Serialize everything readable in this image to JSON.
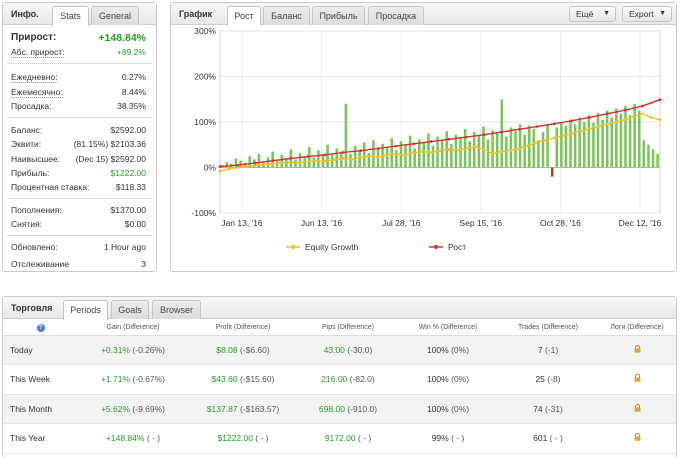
{
  "info": {
    "title": "Инфо.",
    "tabs": [
      "Stats",
      "General"
    ],
    "gain_label": "Прирост:",
    "gain_value": "+148.84%",
    "abs_gain_label": "Абс. прирост:",
    "abs_gain_value": "+89.2%",
    "daily_label": "Ежедневно:",
    "daily_value": "0.27%",
    "monthly_label": "Ежемесячно:",
    "monthly_value": "8.44%",
    "drawdown_label": "Просадка:",
    "drawdown_value": "38.35%",
    "balance_label": "Баланс:",
    "balance_value": "$2592.00",
    "equity_label": "Эквити:",
    "equity_value": "(81.15%) $2103.36",
    "highest_label": "Наивысшее:",
    "highest_value": "(Dec 15) $2592.00",
    "profit_label": "Прибыль:",
    "profit_value": "$1222.00",
    "interest_label": "Процентная ставка:",
    "interest_value": "$118.33",
    "deposits_label": "Пополнения:",
    "deposits_value": "$1370.00",
    "withdrawals_label": "Снятия:",
    "withdrawals_value": "$0.00",
    "updated_label": "Обновлено:",
    "updated_value": "1 Hour ago",
    "tracking_label": "Отслеживание",
    "tracking_value": "3"
  },
  "graph": {
    "title": "График",
    "tabs": [
      "Рост",
      "Баланс",
      "Прибыль",
      "Просадка"
    ],
    "more_button": "Ещё",
    "export_button": "Export",
    "legend": [
      "Equity Growth",
      "Рост"
    ]
  },
  "chart_data": {
    "type": "line",
    "y_ticks": [
      "300%",
      "200%",
      "100%",
      "0%",
      "-100%"
    ],
    "x_ticks": [
      "Jan 13, '16",
      "Jun 13, '16",
      "Jul 28, '16",
      "Sep 15, '16",
      "Oct 28, '16",
      "Dec 12, '16"
    ],
    "ylim": [
      -100,
      300
    ],
    "grid": true,
    "legend_position": "bottom",
    "series": [
      {
        "name": "Equity Growth",
        "color": "#f0c020",
        "points": [
          [
            0,
            -8
          ],
          [
            2,
            -3
          ],
          [
            4,
            0
          ],
          [
            6,
            2
          ],
          [
            8,
            5
          ],
          [
            10,
            7
          ],
          [
            12,
            8
          ],
          [
            14,
            10
          ],
          [
            16,
            12
          ],
          [
            18,
            10
          ],
          [
            20,
            13
          ],
          [
            22,
            15
          ],
          [
            24,
            14
          ],
          [
            26,
            17
          ],
          [
            28,
            20
          ],
          [
            30,
            18
          ],
          [
            32,
            22
          ],
          [
            34,
            25
          ],
          [
            36,
            23
          ],
          [
            38,
            28
          ],
          [
            40,
            30
          ],
          [
            42,
            27
          ],
          [
            44,
            32
          ],
          [
            46,
            35
          ],
          [
            48,
            33
          ],
          [
            50,
            37
          ],
          [
            52,
            40
          ],
          [
            54,
            38
          ],
          [
            56,
            42
          ],
          [
            58,
            45
          ],
          [
            60,
            40
          ],
          [
            62,
            30
          ],
          [
            64,
            35
          ],
          [
            66,
            38
          ],
          [
            68,
            42
          ],
          [
            70,
            48
          ],
          [
            72,
            55
          ],
          [
            74,
            60
          ],
          [
            76,
            65
          ],
          [
            78,
            70
          ],
          [
            80,
            75
          ],
          [
            82,
            80
          ],
          [
            84,
            85
          ],
          [
            86,
            90
          ],
          [
            88,
            95
          ],
          [
            90,
            100
          ],
          [
            92,
            105
          ],
          [
            94,
            112
          ],
          [
            96,
            118
          ],
          [
            98,
            110
          ],
          [
            100,
            105
          ]
        ]
      },
      {
        "name": "Рост",
        "color": "#d03030",
        "points": [
          [
            0,
            2
          ],
          [
            4,
            5
          ],
          [
            8,
            10
          ],
          [
            12,
            15
          ],
          [
            16,
            20
          ],
          [
            20,
            24
          ],
          [
            24,
            28
          ],
          [
            28,
            33
          ],
          [
            32,
            37
          ],
          [
            36,
            42
          ],
          [
            40,
            47
          ],
          [
            44,
            52
          ],
          [
            48,
            57
          ],
          [
            52,
            62
          ],
          [
            56,
            67
          ],
          [
            60,
            72
          ],
          [
            64,
            78
          ],
          [
            68,
            84
          ],
          [
            72,
            90
          ],
          [
            76,
            96
          ],
          [
            80,
            103
          ],
          [
            84,
            110
          ],
          [
            88,
            118
          ],
          [
            92,
            126
          ],
          [
            96,
            135
          ],
          [
            100,
            149
          ]
        ]
      }
    ],
    "bars": {
      "name": "daily",
      "color": "#7cc45a",
      "values": [
        5,
        12,
        8,
        20,
        15,
        10,
        25,
        18,
        30,
        12,
        22,
        35,
        15,
        28,
        20,
        40,
        18,
        32,
        25,
        45,
        22,
        38,
        30,
        50,
        28,
        42,
        35,
        140,
        30,
        48,
        38,
        55,
        32,
        60,
        40,
        52,
        45,
        65,
        38,
        58,
        50,
        70,
        42,
        62,
        55,
        75,
        48,
        68,
        60,
        80,
        52,
        72,
        65,
        85,
        58,
        78,
        70,
        90,
        62,
        82,
        75,
        150,
        68,
        88,
        80,
        95,
        72,
        92,
        85,
        60,
        78,
        96,
        -20,
        88,
        100,
        92,
        105,
        95,
        110,
        100,
        115,
        98,
        120,
        105,
        125,
        110,
        130,
        118,
        135,
        115,
        140,
        125,
        60,
        50,
        40,
        30
      ]
    }
  },
  "trade": {
    "title": "Торговля",
    "tabs": [
      "Periods",
      "Goals",
      "Browser"
    ],
    "headers": [
      "Gain (Difference)",
      "Profit (Difference)",
      "Pips (Difference)",
      "Win % (Difference)",
      "Trades (Difference)",
      "Логи (Difference)"
    ],
    "rows": [
      {
        "label": "Today",
        "gain": "+0.31%",
        "gain_diff": "(-0.26%)",
        "profit": "$8.08",
        "profit_diff": "(-$6.60)",
        "pips": "43.00",
        "pips_diff": "(-30.0)",
        "win": "100%",
        "win_diff": "(0%)",
        "trades": "7",
        "trades_diff": "(-1)"
      },
      {
        "label": "This Week",
        "gain": "+1.71%",
        "gain_diff": "(-0.67%)",
        "profit": "$43.60",
        "profit_diff": "(-$15.60)",
        "pips": "216.00",
        "pips_diff": "(-82.0)",
        "win": "100%",
        "win_diff": "(0%)",
        "trades": "25",
        "trades_diff": "(-8)"
      },
      {
        "label": "This Month",
        "gain": "+5.62%",
        "gain_diff": "(-9.69%)",
        "profit": "$137.87",
        "profit_diff": "(-$163.57)",
        "pips": "698.00",
        "pips_diff": "(-910.0)",
        "win": "100%",
        "win_diff": "(0%)",
        "trades": "74",
        "trades_diff": "(-31)"
      },
      {
        "label": "This Year",
        "gain": "+148.84%",
        "gain_diff": "( - )",
        "profit": "$1222.00",
        "profit_diff": "( - )",
        "pips": "9172.00",
        "pips_diff": "( - )",
        "win": "99%",
        "win_diff": "( - )",
        "trades": "601",
        "trades_diff": "( - )"
      }
    ]
  }
}
